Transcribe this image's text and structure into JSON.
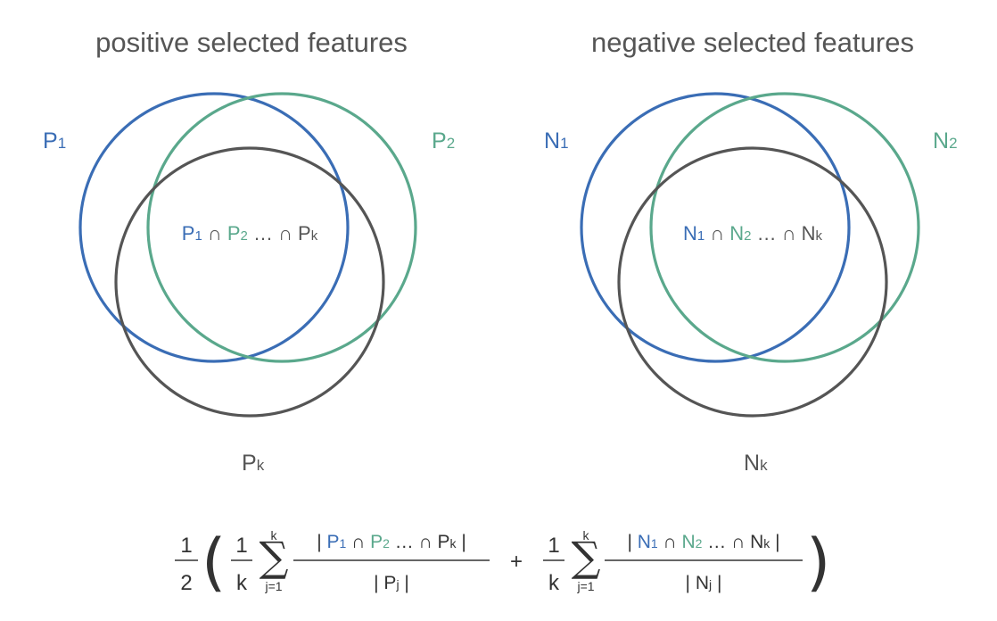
{
  "colors": {
    "blue": "#3a6db5",
    "green": "#5aa88c",
    "gray": "#555555",
    "text_dark": "#333333"
  },
  "positive": {
    "title": "positive selected features",
    "set1": {
      "base": "P",
      "sub": "1"
    },
    "set2": {
      "base": "P",
      "sub": "2"
    },
    "setk": {
      "base": "P",
      "sub": "k"
    },
    "intersection": {
      "t1": "P",
      "t1_sub": "1",
      "op1": " ∩ ",
      "t2": "P",
      "t2_sub": "2",
      "ellipsis": " … ∩ ",
      "tk": "P",
      "tk_sub": "k"
    }
  },
  "negative": {
    "title": "negative selected features",
    "set1": {
      "base": "N",
      "sub": "1"
    },
    "set2": {
      "base": "N",
      "sub": "2"
    },
    "setk": {
      "base": "N",
      "sub": "k"
    },
    "intersection": {
      "t1": "N",
      "t1_sub": "1",
      "op1": " ∩ ",
      "t2": "N",
      "t2_sub": "2",
      "ellipsis": " … ∩ ",
      "tk": "N",
      "tk_sub": "k"
    }
  },
  "formula": {
    "outer_num": "1",
    "outer_den": "2",
    "open_paren": "(",
    "close_paren": ")",
    "inner_num": "1",
    "inner_den": "k",
    "sigma": "∑",
    "sum_upper": "k",
    "sum_lower": "j=1",
    "plus": "+",
    "pos_numerator": {
      "bar_open": "| ",
      "t1": "P",
      "t1_sub": "1",
      "op1": " ∩ ",
      "t2": "P",
      "t2_sub": "2",
      "ellipsis": " … ∩ ",
      "tk": "P",
      "tk_sub": "k",
      "bar_close": " |"
    },
    "pos_denominator": {
      "bar_open": "| ",
      "t": "P",
      "t_sub": "j",
      "bar_close": " |"
    },
    "neg_numerator": {
      "bar_open": "| ",
      "t1": "N",
      "t1_sub": "1",
      "op1": " ∩ ",
      "t2": "N",
      "t2_sub": "2",
      "ellipsis": " … ∩ ",
      "tk": "N",
      "tk_sub": "k",
      "bar_close": " |"
    },
    "neg_denominator": {
      "bar_open": "| ",
      "t": "N",
      "t_sub": "j",
      "bar_close": " |"
    }
  }
}
